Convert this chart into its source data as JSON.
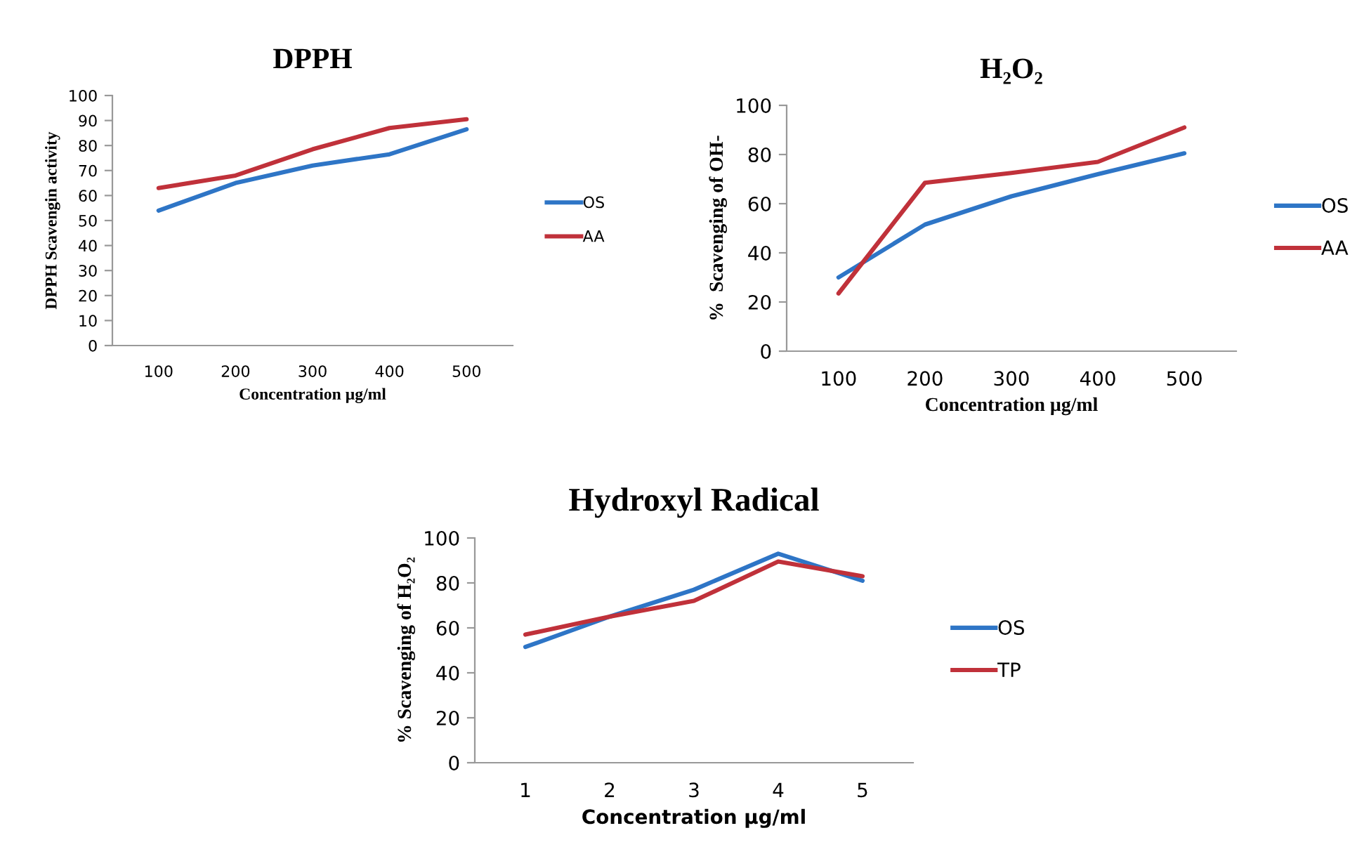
{
  "chart_data": [
    {
      "type": "line",
      "title": "DPPH",
      "xlabel": "Concentration µg/ml",
      "ylabel": "DPPH Scavengin activity",
      "categories": [
        "100",
        "200",
        "300",
        "400",
        "500"
      ],
      "series": [
        {
          "name": "OS",
          "color": "#2e75c6",
          "values": [
            54,
            65,
            72,
            76.5,
            86.5
          ]
        },
        {
          "name": "AA",
          "color": "#c0313a",
          "values": [
            63,
            68,
            78.5,
            87,
            90.5
          ]
        }
      ],
      "ylim": [
        0,
        100
      ],
      "yticks": [
        0,
        10,
        20,
        30,
        40,
        50,
        60,
        70,
        80,
        90,
        100
      ],
      "grid": false,
      "legend": "right",
      "marker": "none"
    },
    {
      "type": "line",
      "title": "H₂O₂",
      "xlabel": "Concentration µg/ml",
      "ylabel": "%  Scavenging of OH-",
      "categories": [
        "100",
        "200",
        "300",
        "400",
        "500"
      ],
      "series": [
        {
          "name": "OS",
          "color": "#2e75c6",
          "values": [
            30,
            51.5,
            63,
            72,
            80.5
          ]
        },
        {
          "name": "AA",
          "color": "#c0313a",
          "values": [
            23.5,
            68.5,
            72.5,
            77,
            91
          ]
        }
      ],
      "ylim": [
        0,
        100
      ],
      "yticks": [
        0,
        20,
        40,
        60,
        80,
        100
      ],
      "grid": false,
      "legend": "right",
      "marker": "none"
    },
    {
      "type": "line",
      "title": "Hydroxyl Radical",
      "xlabel": "Concentration µg/ml",
      "ylabel": "% Scavenging of H₂O₂",
      "categories": [
        "1",
        "2",
        "3",
        "4",
        "5"
      ],
      "series": [
        {
          "name": "OS",
          "color": "#2e75c6",
          "values": [
            51.5,
            65,
            77,
            93,
            81
          ]
        },
        {
          "name": "TP",
          "color": "#c0313a",
          "values": [
            57,
            65,
            72,
            89.5,
            83
          ]
        }
      ],
      "ylim": [
        0,
        100
      ],
      "yticks": [
        0,
        20,
        40,
        60,
        80,
        100
      ],
      "grid": false,
      "legend": "right",
      "marker": "none"
    }
  ]
}
